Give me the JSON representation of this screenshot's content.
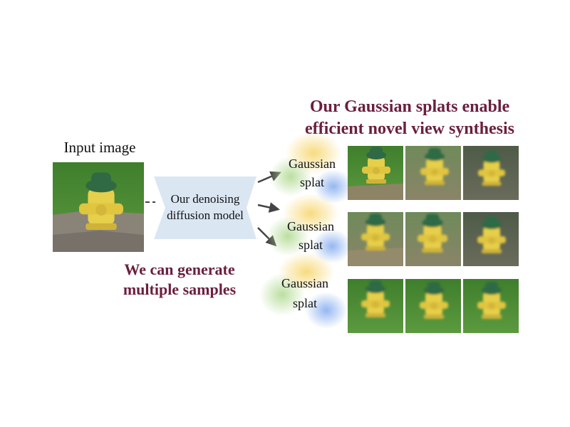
{
  "input_label": "Input image",
  "model_label_line1": "Our denoising",
  "model_label_line2": "diffusion model",
  "samples_label_line1": "We can generate",
  "samples_label_line2": "multiple samples",
  "headline_line1": "Our Gaussian splats enable",
  "headline_line2": "efficient novel view synthesis",
  "splats": [
    {
      "line1": "Gaussian",
      "line2": "splat"
    },
    {
      "line1": "Gaussian",
      "line2": "splat"
    },
    {
      "line1": "Gaussian",
      "line2": "splat"
    }
  ],
  "colors": {
    "accent": "#6b1f3f",
    "model_box": "#dbe6f3",
    "arrow": "#444444",
    "hydrant_yellow": "#e6cf4a",
    "hydrant_green": "#2f6a45",
    "grass": "#4f8a35"
  }
}
